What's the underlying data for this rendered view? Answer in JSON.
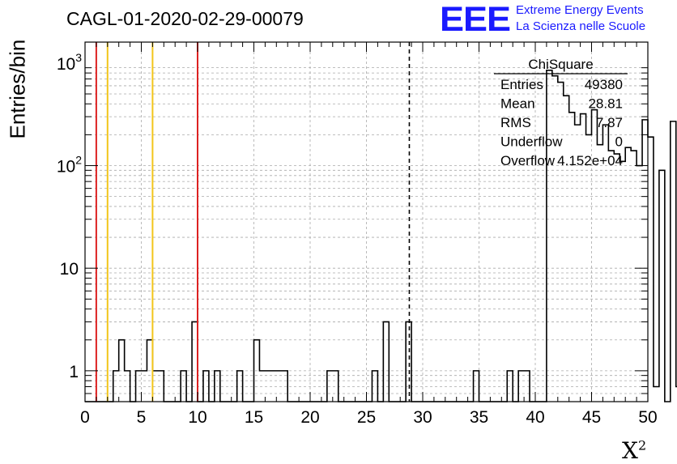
{
  "header": {
    "title": "CAGL-01-2020-02-29-00079",
    "logo_text": "EEE",
    "logo_line1": "Extreme Energy Events",
    "logo_line2": "La Scienza nelle Scuole"
  },
  "stats": {
    "name": "ChiSquare",
    "rows": [
      {
        "label": "Entries",
        "value": "49380"
      },
      {
        "label": "Mean",
        "value": "28.81"
      },
      {
        "label": "RMS",
        "value": "7.87"
      },
      {
        "label": "Underflow",
        "value": "0"
      },
      {
        "label": "Overflow",
        "value": "4.152e+04"
      }
    ]
  },
  "colors": {
    "red": "#dd2222",
    "yellow": "#f2c51a",
    "logo": "#1a1aff"
  },
  "chart_data": {
    "type": "bar",
    "xlabel": "X",
    "xlabel_sup": "2",
    "ylabel": "Entries/bin",
    "xlim": [
      0,
      50
    ],
    "ylim": [
      0.5,
      1600
    ],
    "yscale": "log",
    "grid": true,
    "bin_width": 0.5,
    "xticks": [
      "0",
      "5",
      "10",
      "15",
      "20",
      "25",
      "30",
      "35",
      "40",
      "45",
      "50"
    ],
    "yticks": [
      {
        "value": 1,
        "label": "1"
      },
      {
        "value": 10,
        "label": "10"
      },
      {
        "value": 100,
        "label": "10",
        "sup": "2"
      },
      {
        "value": 1000,
        "label": "10",
        "sup": "3"
      }
    ],
    "values": [
      0,
      0,
      0,
      0,
      0,
      1,
      2,
      1,
      0,
      1,
      1,
      2,
      1,
      1,
      0,
      0,
      0,
      1,
      0,
      3,
      0,
      1,
      0,
      1,
      0,
      0,
      0,
      1,
      0,
      0,
      2,
      1,
      1,
      1,
      1,
      1,
      0,
      0,
      0,
      0,
      0,
      0,
      0,
      1,
      1,
      0,
      0,
      0,
      0,
      0,
      0,
      1,
      0,
      3,
      0,
      0,
      0,
      3,
      0,
      0,
      0,
      0,
      0,
      0,
      0,
      0,
      0,
      0,
      0,
      1,
      0,
      0,
      0,
      0,
      0,
      1,
      0,
      1,
      1,
      0,
      0,
      0,
      850,
      750,
      650,
      480,
      330,
      250,
      320,
      200,
      350,
      160,
      250,
      140,
      130,
      110,
      150,
      140,
      100,
      280,
      190,
      0.7,
      90,
      0.5,
      270,
      0.7,
      250,
      0.5,
      330,
      0.6,
      170,
      0.6,
      280,
      0.5,
      180,
      0.5,
      190,
      0.5,
      160,
      0.5,
      150,
      0.5,
      150,
      0.5,
      100,
      0.5,
      80,
      0.5,
      180,
      0.5,
      160,
      0.5,
      75,
      0.5,
      70,
      0.5,
      130,
      0.5,
      40,
      0.5,
      30,
      0.5,
      45,
      0.5,
      60,
      0.5,
      70,
      0.5,
      8,
      0.5,
      20,
      0.5,
      20,
      0.5,
      35,
      0.5,
      30,
      0.5,
      1,
      1,
      1,
      160
    ],
    "reference_lines": [
      {
        "x": 1,
        "color": "red",
        "style": "solid"
      },
      {
        "x": 2,
        "color": "yellow",
        "style": "solid"
      },
      {
        "x": 6,
        "color": "yellow",
        "style": "solid"
      },
      {
        "x": 10,
        "color": "red",
        "style": "solid"
      },
      {
        "x": 28.81,
        "color": "black",
        "style": "dashed"
      }
    ]
  }
}
